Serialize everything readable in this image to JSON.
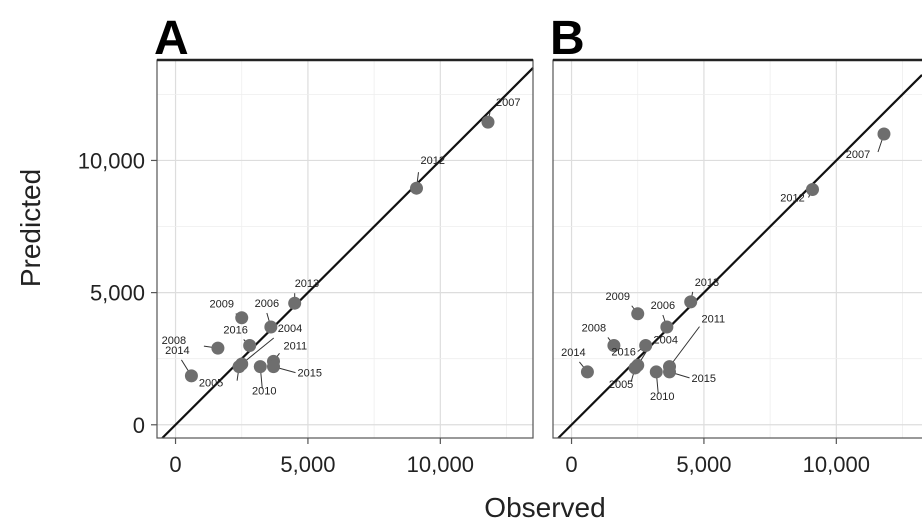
{
  "chart_data": [
    {
      "type": "scatter",
      "panel": "A",
      "xlabel": "Observed",
      "ylabel": "Predicted",
      "xlim": [
        -700,
        13500
      ],
      "ylim": [
        -500,
        13800
      ],
      "x_ticks": [
        0,
        5000,
        10000
      ],
      "x_tick_labels": [
        "0",
        "5,000",
        "10,000"
      ],
      "y_ticks": [
        0,
        5000,
        10000
      ],
      "y_tick_labels": [
        "0",
        "5,000",
        "10,000"
      ],
      "grid": true,
      "reference_line": "y = x",
      "points": [
        {
          "label": "2004",
          "x": 2500,
          "y": 2300
        },
        {
          "label": "2005",
          "x": 2400,
          "y": 2200
        },
        {
          "label": "2006",
          "x": 3600,
          "y": 3700
        },
        {
          "label": "2007",
          "x": 11800,
          "y": 11450
        },
        {
          "label": "2008",
          "x": 1600,
          "y": 2900
        },
        {
          "label": "2009",
          "x": 2500,
          "y": 4050
        },
        {
          "label": "2010",
          "x": 3200,
          "y": 2200
        },
        {
          "label": "2011",
          "x": 3700,
          "y": 2400
        },
        {
          "label": "2012",
          "x": 9100,
          "y": 8950
        },
        {
          "label": "2013",
          "x": 4500,
          "y": 4600
        },
        {
          "label": "2014",
          "x": 600,
          "y": 1850
        },
        {
          "label": "2015",
          "x": 3700,
          "y": 2200
        },
        {
          "label": "2016",
          "x": 2800,
          "y": 3000
        }
      ]
    },
    {
      "type": "scatter",
      "panel": "B",
      "xlabel": "Observed",
      "ylabel": "Predicted",
      "xlim": [
        -700,
        13500
      ],
      "ylim": [
        -500,
        13800
      ],
      "x_ticks": [
        0,
        5000,
        10000
      ],
      "x_tick_labels": [
        "0",
        "5,000",
        "10,000"
      ],
      "grid": true,
      "reference_line": "y = x",
      "points": [
        {
          "label": "2004",
          "x": 2500,
          "y": 2250
        },
        {
          "label": "2005",
          "x": 2400,
          "y": 2150
        },
        {
          "label": "2006",
          "x": 3600,
          "y": 3700
        },
        {
          "label": "2007",
          "x": 11800,
          "y": 11000
        },
        {
          "label": "2008",
          "x": 1600,
          "y": 3000
        },
        {
          "label": "2009",
          "x": 2500,
          "y": 4200
        },
        {
          "label": "2010",
          "x": 3200,
          "y": 2000
        },
        {
          "label": "2011",
          "x": 3700,
          "y": 2200
        },
        {
          "label": "2012",
          "x": 9100,
          "y": 8900
        },
        {
          "label": "2013",
          "x": 4500,
          "y": 4650
        },
        {
          "label": "2014",
          "x": 600,
          "y": 2000
        },
        {
          "label": "2015",
          "x": 3700,
          "y": 2000
        },
        {
          "label": "2016",
          "x": 2800,
          "y": 3000
        }
      ]
    }
  ]
}
